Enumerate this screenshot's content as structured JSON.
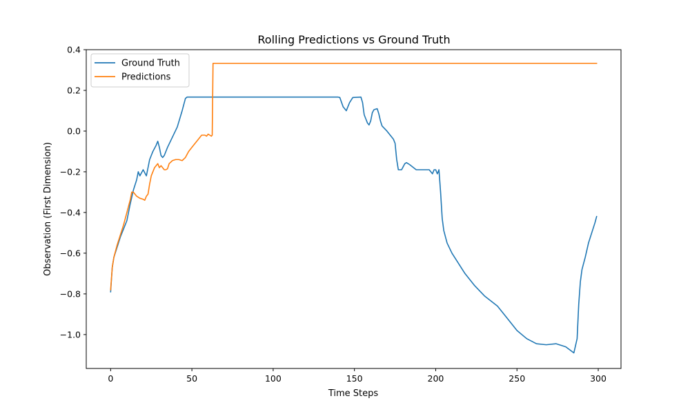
{
  "chart_data": {
    "type": "line",
    "title": "Rolling Predictions vs Ground Truth",
    "xlabel": "Time Steps",
    "ylabel": "Observation (First Dimension)",
    "xlim": [
      -15,
      314
    ],
    "ylim": [
      -1.1665,
      0.4
    ],
    "xticks": [
      0,
      50,
      100,
      150,
      200,
      250,
      300
    ],
    "yticks": [
      -1.0,
      -0.8,
      -0.6,
      -0.4,
      -0.2,
      0.0,
      0.2,
      0.4
    ],
    "xtick_labels": [
      "0",
      "50",
      "100",
      "150",
      "200",
      "250",
      "300"
    ],
    "ytick_labels": [
      "−1.0",
      "−0.8",
      "−0.6",
      "−0.4",
      "−0.2",
      "0.0",
      "0.2",
      "0.4"
    ],
    "grid": false,
    "legend_position": "upper-left",
    "series": [
      {
        "name": "Ground Truth",
        "color": "#1f77b4",
        "points": [
          [
            0,
            -0.79
          ],
          [
            1,
            -0.67
          ],
          [
            2,
            -0.62
          ],
          [
            4,
            -0.57
          ],
          [
            6,
            -0.52
          ],
          [
            8,
            -0.48
          ],
          [
            10,
            -0.44
          ],
          [
            12,
            -0.36
          ],
          [
            14,
            -0.29
          ],
          [
            16,
            -0.24
          ],
          [
            17,
            -0.2
          ],
          [
            18,
            -0.22
          ],
          [
            20,
            -0.19
          ],
          [
            22,
            -0.22
          ],
          [
            24,
            -0.14
          ],
          [
            26,
            -0.1
          ],
          [
            28,
            -0.07
          ],
          [
            29,
            -0.05
          ],
          [
            30,
            -0.08
          ],
          [
            31,
            -0.12
          ],
          [
            32,
            -0.13
          ],
          [
            33,
            -0.12
          ],
          [
            35,
            -0.08
          ],
          [
            38,
            -0.03
          ],
          [
            41,
            0.02
          ],
          [
            44,
            0.1
          ],
          [
            46,
            0.16
          ],
          [
            47,
            0.167
          ],
          [
            60,
            0.167
          ],
          [
            80,
            0.167
          ],
          [
            100,
            0.167
          ],
          [
            120,
            0.167
          ],
          [
            140,
            0.167
          ],
          [
            141,
            0.165
          ],
          [
            143,
            0.12
          ],
          [
            145,
            0.1
          ],
          [
            147,
            0.14
          ],
          [
            149,
            0.165
          ],
          [
            154,
            0.167
          ],
          [
            155,
            0.14
          ],
          [
            156,
            0.08
          ],
          [
            158,
            0.04
          ],
          [
            159,
            0.03
          ],
          [
            160,
            0.05
          ],
          [
            161,
            0.09
          ],
          [
            162,
            0.105
          ],
          [
            164,
            0.11
          ],
          [
            165,
            0.085
          ],
          [
            166,
            0.05
          ],
          [
            167,
            0.025
          ],
          [
            170,
            0.0
          ],
          [
            172,
            -0.02
          ],
          [
            174,
            -0.04
          ],
          [
            175,
            -0.06
          ],
          [
            176,
            -0.14
          ],
          [
            177,
            -0.19
          ],
          [
            179,
            -0.19
          ],
          [
            181,
            -0.16
          ],
          [
            182,
            -0.155
          ],
          [
            184,
            -0.165
          ],
          [
            188,
            -0.19
          ],
          [
            192,
            -0.19
          ],
          [
            196,
            -0.19
          ],
          [
            198,
            -0.21
          ],
          [
            199,
            -0.19
          ],
          [
            200,
            -0.19
          ],
          [
            201,
            -0.21
          ],
          [
            202,
            -0.19
          ],
          [
            203,
            -0.3
          ],
          [
            204,
            -0.43
          ],
          [
            205,
            -0.49
          ],
          [
            207,
            -0.55
          ],
          [
            210,
            -0.6
          ],
          [
            214,
            -0.65
          ],
          [
            218,
            -0.7
          ],
          [
            224,
            -0.76
          ],
          [
            230,
            -0.81
          ],
          [
            238,
            -0.86
          ],
          [
            244,
            -0.92
          ],
          [
            250,
            -0.98
          ],
          [
            256,
            -1.02
          ],
          [
            262,
            -1.045
          ],
          [
            268,
            -1.05
          ],
          [
            274,
            -1.045
          ],
          [
            280,
            -1.06
          ],
          [
            285,
            -1.09
          ],
          [
            287,
            -1.02
          ],
          [
            288,
            -0.85
          ],
          [
            289,
            -0.74
          ],
          [
            290,
            -0.68
          ],
          [
            292,
            -0.62
          ],
          [
            294,
            -0.55
          ],
          [
            296,
            -0.5
          ],
          [
            298,
            -0.45
          ],
          [
            299,
            -0.42
          ]
        ]
      },
      {
        "name": "Predictions",
        "color": "#ff7f0e",
        "points": [
          [
            0,
            -0.78
          ],
          [
            1,
            -0.67
          ],
          [
            2,
            -0.62
          ],
          [
            4,
            -0.56
          ],
          [
            6,
            -0.51
          ],
          [
            8,
            -0.46
          ],
          [
            10,
            -0.4
          ],
          [
            12,
            -0.34
          ],
          [
            13,
            -0.3
          ],
          [
            14,
            -0.3
          ],
          [
            16,
            -0.32
          ],
          [
            18,
            -0.33
          ],
          [
            20,
            -0.335
          ],
          [
            21,
            -0.34
          ],
          [
            22,
            -0.32
          ],
          [
            23,
            -0.31
          ],
          [
            24,
            -0.26
          ],
          [
            25,
            -0.22
          ],
          [
            27,
            -0.18
          ],
          [
            28,
            -0.17
          ],
          [
            29,
            -0.16
          ],
          [
            30,
            -0.18
          ],
          [
            31,
            -0.17
          ],
          [
            32,
            -0.18
          ],
          [
            33,
            -0.19
          ],
          [
            34,
            -0.19
          ],
          [
            35,
            -0.185
          ],
          [
            36,
            -0.16
          ],
          [
            38,
            -0.145
          ],
          [
            40,
            -0.14
          ],
          [
            42,
            -0.14
          ],
          [
            44,
            -0.145
          ],
          [
            46,
            -0.13
          ],
          [
            48,
            -0.1
          ],
          [
            50,
            -0.08
          ],
          [
            52,
            -0.06
          ],
          [
            54,
            -0.04
          ],
          [
            56,
            -0.02
          ],
          [
            58,
            -0.02
          ],
          [
            59,
            -0.025
          ],
          [
            60,
            -0.015
          ],
          [
            61,
            -0.02
          ],
          [
            62,
            -0.025
          ],
          [
            62.5,
            -0.02
          ],
          [
            63,
            0.333
          ],
          [
            80,
            0.333
          ],
          [
            120,
            0.333
          ],
          [
            160,
            0.333
          ],
          [
            200,
            0.333
          ],
          [
            240,
            0.333
          ],
          [
            280,
            0.333
          ],
          [
            299,
            0.333
          ]
        ]
      }
    ]
  }
}
